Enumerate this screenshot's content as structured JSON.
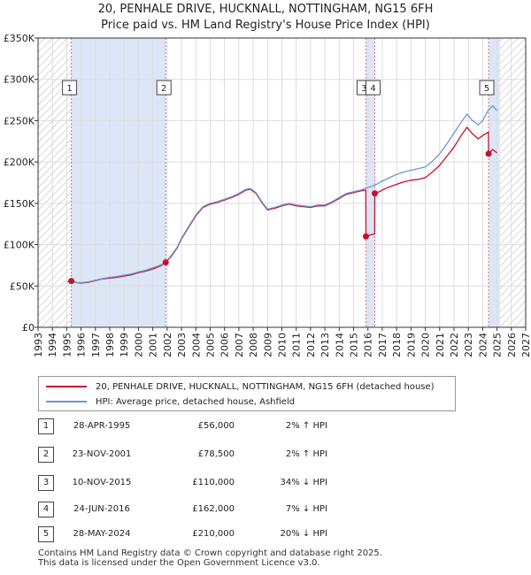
{
  "header": {
    "title_line1": "20, PENHALE DRIVE, HUCKNALL, NOTTINGHAM, NG15 6FH",
    "title_line2": "Price paid vs. HM Land Registry's House Price Index (HPI)"
  },
  "chart_data": {
    "type": "line",
    "title": "20, PENHALE DRIVE, HUCKNALL, NOTTINGHAM, NG15 6FH — Price paid vs. HM Land Registry's House Price Index (HPI)",
    "xlim": [
      1993,
      2027
    ],
    "ylim": [
      0,
      350000
    ],
    "x_ticks": [
      "1993",
      "1994",
      "1995",
      "1996",
      "1997",
      "1998",
      "1999",
      "2000",
      "2001",
      "2002",
      "2003",
      "2004",
      "2005",
      "2006",
      "2007",
      "2008",
      "2009",
      "2010",
      "2011",
      "2012",
      "2013",
      "2014",
      "2015",
      "2016",
      "2017",
      "2018",
      "2019",
      "2020",
      "2021",
      "2022",
      "2023",
      "2024",
      "2025",
      "2026",
      "2027"
    ],
    "y_ticks": [
      {
        "value": 0,
        "label": "£0"
      },
      {
        "value": 50000,
        "label": "£50K"
      },
      {
        "value": 100000,
        "label": "£100K"
      },
      {
        "value": 150000,
        "label": "£150K"
      },
      {
        "value": 200000,
        "label": "£200K"
      },
      {
        "value": 250000,
        "label": "£250K"
      },
      {
        "value": 300000,
        "label": "£300K"
      },
      {
        "value": 350000,
        "label": "£350K"
      }
    ],
    "grid": true,
    "hatched_regions": [
      [
        1993,
        1995.3
      ],
      [
        2025.2,
        2027
      ]
    ],
    "shaded_periods": [
      [
        1995.32,
        2001.9
      ],
      [
        2015.86,
        2016.48
      ],
      [
        2024.41,
        2025.2
      ]
    ],
    "series": [
      {
        "name": "HPI: Average price, detached house, Ashfield",
        "color": "#6a97d3",
        "points": [
          [
            1995.0,
            55000
          ],
          [
            1995.5,
            54500
          ],
          [
            1996.0,
            54000
          ],
          [
            1996.5,
            55000
          ],
          [
            1997.0,
            57000
          ],
          [
            1997.5,
            59000
          ],
          [
            1998.0,
            60500
          ],
          [
            1998.5,
            61500
          ],
          [
            1999.0,
            63000
          ],
          [
            1999.5,
            64500
          ],
          [
            2000.0,
            67000
          ],
          [
            2000.5,
            69000
          ],
          [
            2001.0,
            72000
          ],
          [
            2001.5,
            75000
          ],
          [
            2001.9,
            79000
          ],
          [
            2002.3,
            87000
          ],
          [
            2002.7,
            97000
          ],
          [
            2003.0,
            108000
          ],
          [
            2003.5,
            122000
          ],
          [
            2004.0,
            136000
          ],
          [
            2004.5,
            146000
          ],
          [
            2005.0,
            150000
          ],
          [
            2005.5,
            152000
          ],
          [
            2006.0,
            155000
          ],
          [
            2006.5,
            158000
          ],
          [
            2007.0,
            162000
          ],
          [
            2007.5,
            167000
          ],
          [
            2007.8,
            168000
          ],
          [
            2008.2,
            163000
          ],
          [
            2008.6,
            152000
          ],
          [
            2009.0,
            143000
          ],
          [
            2009.5,
            145000
          ],
          [
            2010.0,
            148000
          ],
          [
            2010.5,
            150000
          ],
          [
            2011.0,
            148000
          ],
          [
            2011.5,
            147000
          ],
          [
            2012.0,
            146000
          ],
          [
            2012.5,
            148000
          ],
          [
            2013.0,
            148000
          ],
          [
            2013.5,
            152000
          ],
          [
            2014.0,
            157000
          ],
          [
            2014.5,
            162000
          ],
          [
            2015.0,
            164000
          ],
          [
            2015.5,
            166000
          ],
          [
            2016.0,
            169000
          ],
          [
            2016.5,
            172000
          ],
          [
            2017.0,
            177000
          ],
          [
            2017.5,
            181000
          ],
          [
            2018.0,
            185000
          ],
          [
            2018.5,
            188000
          ],
          [
            2019.0,
            190000
          ],
          [
            2019.5,
            192000
          ],
          [
            2020.0,
            194000
          ],
          [
            2020.5,
            201000
          ],
          [
            2021.0,
            210000
          ],
          [
            2021.5,
            222000
          ],
          [
            2022.0,
            235000
          ],
          [
            2022.5,
            248000
          ],
          [
            2022.9,
            258000
          ],
          [
            2023.3,
            250000
          ],
          [
            2023.7,
            245000
          ],
          [
            2024.0,
            250000
          ],
          [
            2024.4,
            263000
          ],
          [
            2024.7,
            268000
          ],
          [
            2025.0,
            262000
          ]
        ]
      },
      {
        "name": "20, PENHALE DRIVE, HUCKNALL, NOTTINGHAM, NG15 6FH (detached house)",
        "color": "#c8102e",
        "points": [
          [
            1995.32,
            56000
          ],
          [
            1995.7,
            54000
          ],
          [
            1996.0,
            53500
          ],
          [
            1996.5,
            54500
          ],
          [
            1997.0,
            56500
          ],
          [
            1997.5,
            58500
          ],
          [
            1998.0,
            59500
          ],
          [
            1998.5,
            60500
          ],
          [
            1999.0,
            62000
          ],
          [
            1999.5,
            63500
          ],
          [
            2000.0,
            66000
          ],
          [
            2000.5,
            68000
          ],
          [
            2001.0,
            70500
          ],
          [
            2001.5,
            74000
          ],
          [
            2001.9,
            78500
          ],
          [
            2002.3,
            86000
          ],
          [
            2002.7,
            96000
          ],
          [
            2003.0,
            107000
          ],
          [
            2003.5,
            121000
          ],
          [
            2004.0,
            135000
          ],
          [
            2004.5,
            145000
          ],
          [
            2005.0,
            149000
          ],
          [
            2005.5,
            151000
          ],
          [
            2006.0,
            154000
          ],
          [
            2006.5,
            157000
          ],
          [
            2007.0,
            161000
          ],
          [
            2007.5,
            166000
          ],
          [
            2007.8,
            167000
          ],
          [
            2008.2,
            162000
          ],
          [
            2008.6,
            151000
          ],
          [
            2009.0,
            142000
          ],
          [
            2009.5,
            144000
          ],
          [
            2010.0,
            147000
          ],
          [
            2010.5,
            149000
          ],
          [
            2011.0,
            147000
          ],
          [
            2011.5,
            146000
          ],
          [
            2012.0,
            145000
          ],
          [
            2012.5,
            147000
          ],
          [
            2013.0,
            147000
          ],
          [
            2013.5,
            151000
          ],
          [
            2014.0,
            156000
          ],
          [
            2014.5,
            161000
          ],
          [
            2015.0,
            163000
          ],
          [
            2015.5,
            165000
          ],
          [
            2015.85,
            166000
          ],
          [
            2015.86,
            110000
          ],
          [
            2016.2,
            112000
          ],
          [
            2016.47,
            113000
          ],
          [
            2016.48,
            162000
          ],
          [
            2016.8,
            164000
          ],
          [
            2017.0,
            166000
          ],
          [
            2017.5,
            170000
          ],
          [
            2018.0,
            173000
          ],
          [
            2018.5,
            176000
          ],
          [
            2019.0,
            178000
          ],
          [
            2019.5,
            179000
          ],
          [
            2020.0,
            181000
          ],
          [
            2020.5,
            188000
          ],
          [
            2021.0,
            196000
          ],
          [
            2021.5,
            207000
          ],
          [
            2022.0,
            218000
          ],
          [
            2022.5,
            232000
          ],
          [
            2022.9,
            242000
          ],
          [
            2023.3,
            234000
          ],
          [
            2023.7,
            228000
          ],
          [
            2024.0,
            232000
          ],
          [
            2024.4,
            236000
          ],
          [
            2024.41,
            210000
          ],
          [
            2024.7,
            215000
          ],
          [
            2025.0,
            211000
          ]
        ]
      }
    ],
    "sales": [
      {
        "label": "1",
        "x": 1995.32,
        "price": 56000
      },
      {
        "label": "2",
        "x": 2001.9,
        "price": 78500
      },
      {
        "label": "3",
        "x": 2015.86,
        "price": 110000
      },
      {
        "label": "4",
        "x": 2016.48,
        "price": 162000
      },
      {
        "label": "5",
        "x": 2024.41,
        "price": 210000
      }
    ],
    "marker_label_value": 290000,
    "colors": {
      "price_line": "#c8102e",
      "hpi_line": "#6a97d3",
      "shade": "#dce6f7",
      "vline": "#e0707a",
      "grid": "#dddddd"
    }
  },
  "legend": {
    "items": [
      {
        "label": "20, PENHALE DRIVE, HUCKNALL, NOTTINGHAM, NG15 6FH (detached house)",
        "color": "#c8102e"
      },
      {
        "label": "HPI: Average price, detached house, Ashfield",
        "color": "#6a97d3"
      }
    ]
  },
  "transactions": [
    {
      "num": "1",
      "date": "28-APR-1995",
      "price": "£56,000",
      "hpi": "2% ↑ HPI"
    },
    {
      "num": "2",
      "date": "23-NOV-2001",
      "price": "£78,500",
      "hpi": "2% ↑ HPI"
    },
    {
      "num": "3",
      "date": "10-NOV-2015",
      "price": "£110,000",
      "hpi": "34% ↓ HPI"
    },
    {
      "num": "4",
      "date": "24-JUN-2016",
      "price": "£162,000",
      "hpi": "7% ↓ HPI"
    },
    {
      "num": "5",
      "date": "28-MAY-2024",
      "price": "£210,000",
      "hpi": "20% ↓ HPI"
    }
  ],
  "footer": {
    "line1": "Contains HM Land Registry data © Crown copyright and database right 2025.",
    "line2": "This data is licensed under the Open Government Licence v3.0."
  }
}
